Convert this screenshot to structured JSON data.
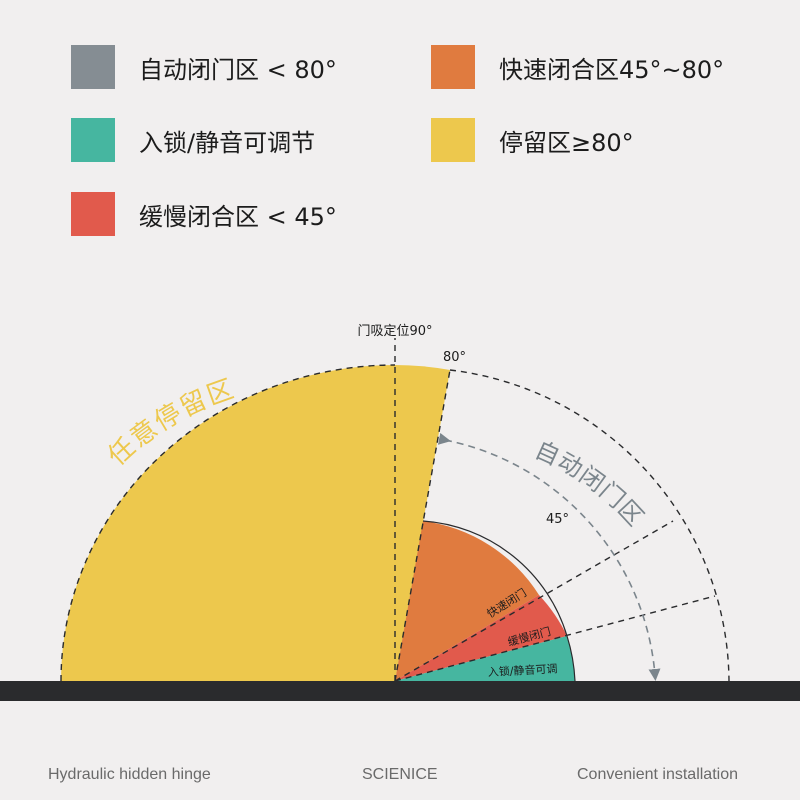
{
  "legend": [
    {
      "label": "自动闭门区 < 80°",
      "color": "#858d93"
    },
    {
      "label": "快速闭合区45°~80°",
      "color": "#e07b3f"
    },
    {
      "label": "入锁/静音可调节",
      "color": "#46b6a0"
    },
    {
      "label": "停留区≥80°",
      "color": "#edc84d"
    },
    {
      "label": "缓慢闭合区 < 45°",
      "color": "#e15a4c"
    }
  ],
  "diagram": {
    "label_90": "门吸定位90°",
    "label_80": "80°",
    "label_45": "45°",
    "label_stay": "任意停留区",
    "label_auto": "自动闭门区",
    "label_fast": "快速闭门",
    "label_slow": "缓慢闭门",
    "label_lock": "入锁/静音可调",
    "colors": {
      "stay": "#edc84d",
      "fast": "#e07b3f",
      "slow": "#e15a4c",
      "lock": "#46b6a0",
      "floor": "#2a2b2d",
      "arrow": "#7b858c"
    }
  },
  "footer": {
    "left": "Hydraulic hidden hinge",
    "center": "SCIENICE",
    "right": "Convenient installation"
  }
}
